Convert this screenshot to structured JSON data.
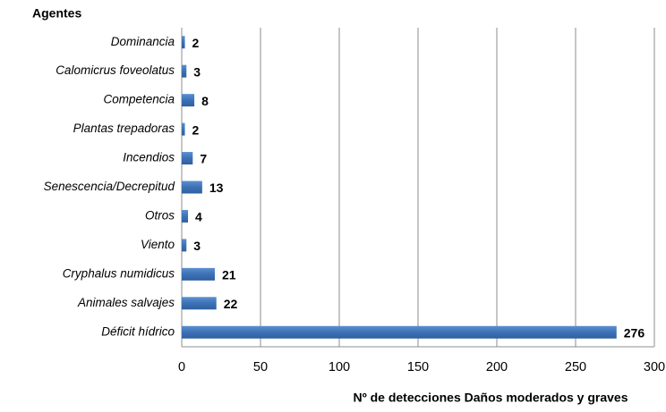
{
  "chart_data": {
    "type": "bar",
    "orientation": "horizontal",
    "y_axis_label": "Agentes",
    "x_axis_label": "Nº de detecciones Daños moderados y graves",
    "categories": [
      "Dominancia",
      "Calomicrus foveolatus",
      "Competencia",
      "Plantas trepadoras",
      "Incendios",
      "Senescencia/Decrepitud",
      "Otros",
      "Viento",
      "Cryphalus numidicus",
      "Animales salvajes",
      "Déficit hídrico"
    ],
    "values": [
      2,
      3,
      8,
      2,
      7,
      13,
      4,
      3,
      21,
      22,
      276
    ],
    "color": "#4a7ebb",
    "xlim": [
      0,
      300
    ],
    "xticks": [
      0,
      50,
      100,
      150,
      200,
      250,
      300
    ],
    "grid": true
  }
}
